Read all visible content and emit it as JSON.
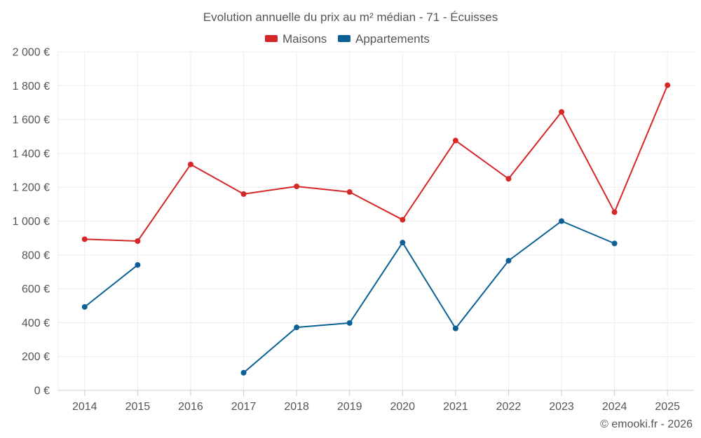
{
  "chart_data": {
    "type": "line",
    "title": "Evolution annuelle du prix au m² médian - 71 - Écuisses",
    "categories": [
      "2014",
      "2015",
      "2016",
      "2017",
      "2018",
      "2019",
      "2020",
      "2021",
      "2022",
      "2023",
      "2024",
      "2025"
    ],
    "ylim": [
      0,
      2000
    ],
    "yticks": [
      0,
      200,
      400,
      600,
      800,
      1000,
      1200,
      1400,
      1600,
      1800,
      2000
    ],
    "ytick_labels": [
      "0 €",
      "200 €",
      "400 €",
      "600 €",
      "800 €",
      "1 000 €",
      "1 200 €",
      "1 400 €",
      "1 600 €",
      "1 800 €",
      "2 000 €"
    ],
    "grid": true,
    "legend_position": "top-center",
    "series": [
      {
        "name": "Maisons",
        "color": "#d62728",
        "values": [
          893,
          882,
          1335,
          1160,
          1205,
          1172,
          1008,
          1476,
          1250,
          1645,
          1053,
          1803
        ]
      },
      {
        "name": "Appartements",
        "color": "#0b6196",
        "values": [
          493,
          741,
          null,
          104,
          372,
          398,
          873,
          366,
          766,
          1000,
          868,
          null
        ]
      }
    ]
  },
  "credit": "© emooki.fr - 2026"
}
